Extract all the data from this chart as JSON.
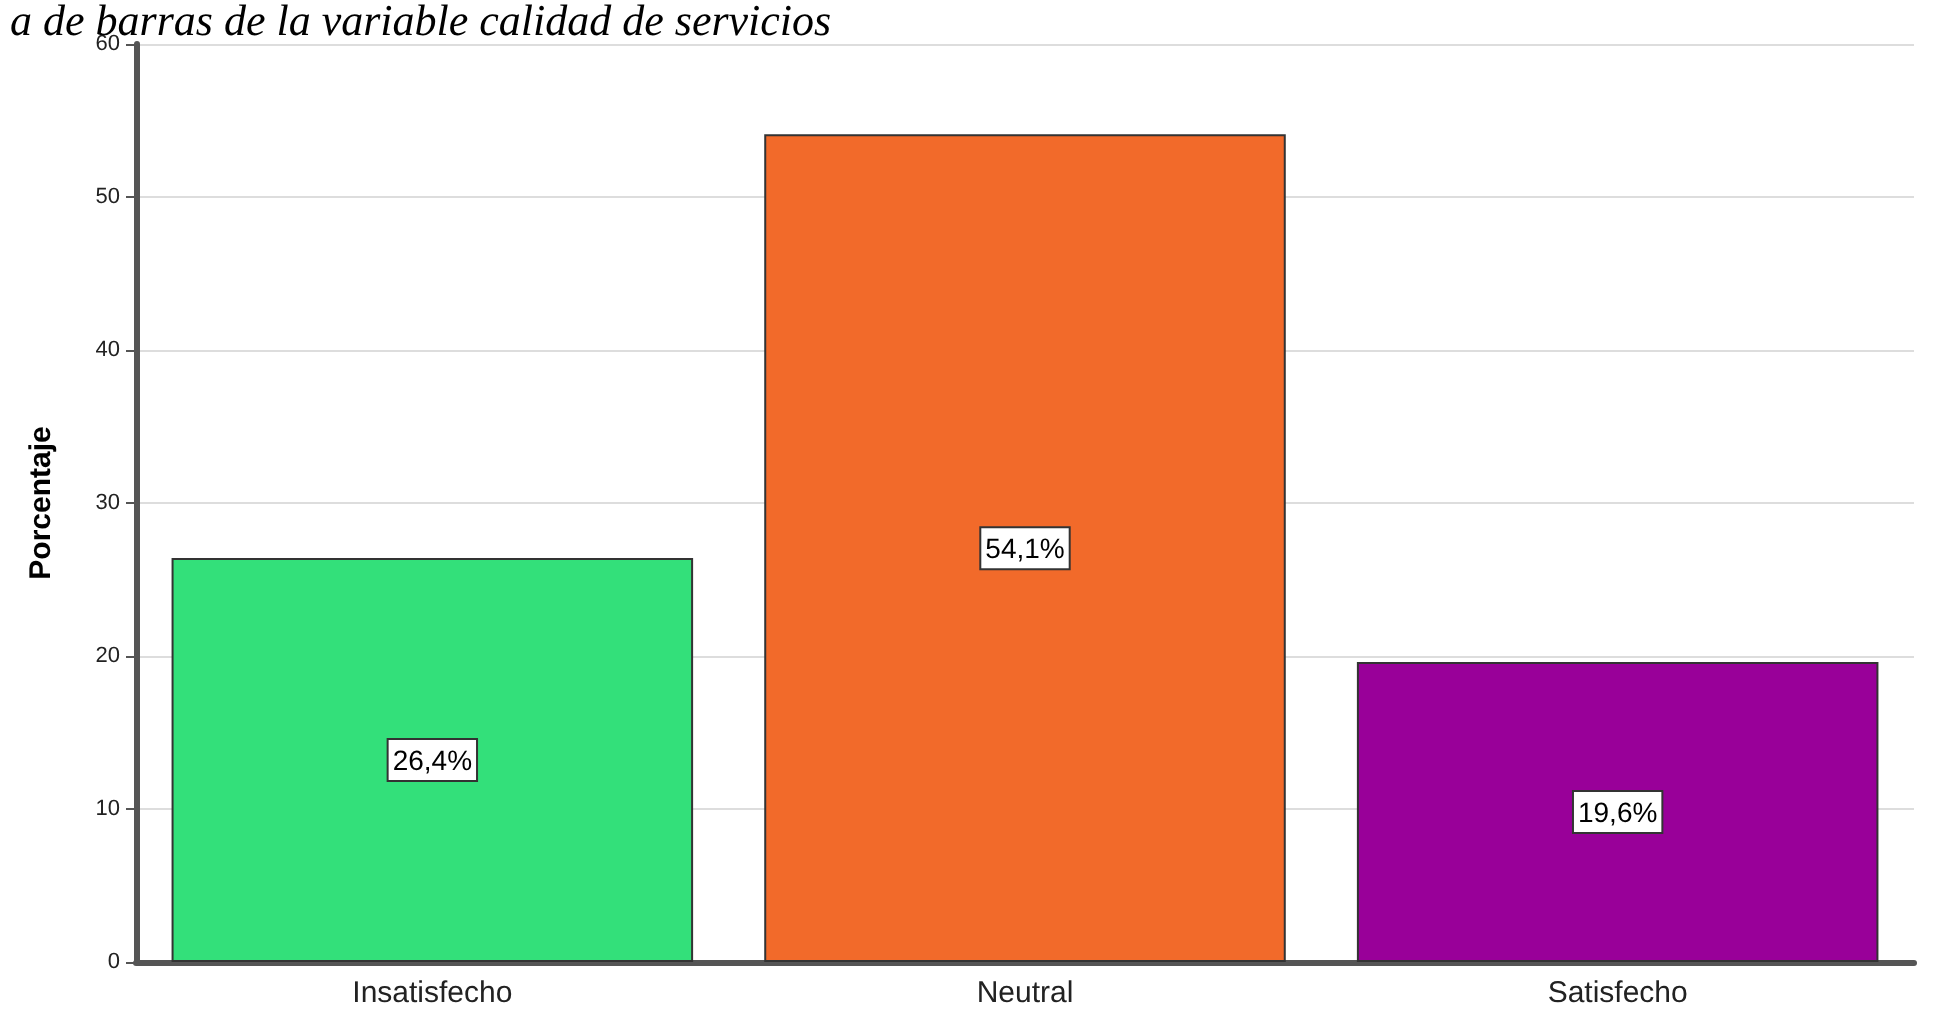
{
  "chart_data": {
    "type": "bar",
    "title": "a de barras de la variable calidad de servicios",
    "ylabel": "Porcentaje",
    "categories": [
      "Insatisfecho",
      "Neutral",
      "Satisfecho"
    ],
    "values": [
      26.4,
      54.1,
      19.6
    ],
    "colors": [
      "#33e07a",
      "#f26a2a",
      "#990099"
    ],
    "value_labels": [
      "26,4%",
      "54,1%",
      "19,6%"
    ],
    "ylim": [
      0,
      60
    ],
    "yticks": [
      0,
      10,
      20,
      30,
      40,
      50,
      60
    ],
    "grid": "y"
  }
}
